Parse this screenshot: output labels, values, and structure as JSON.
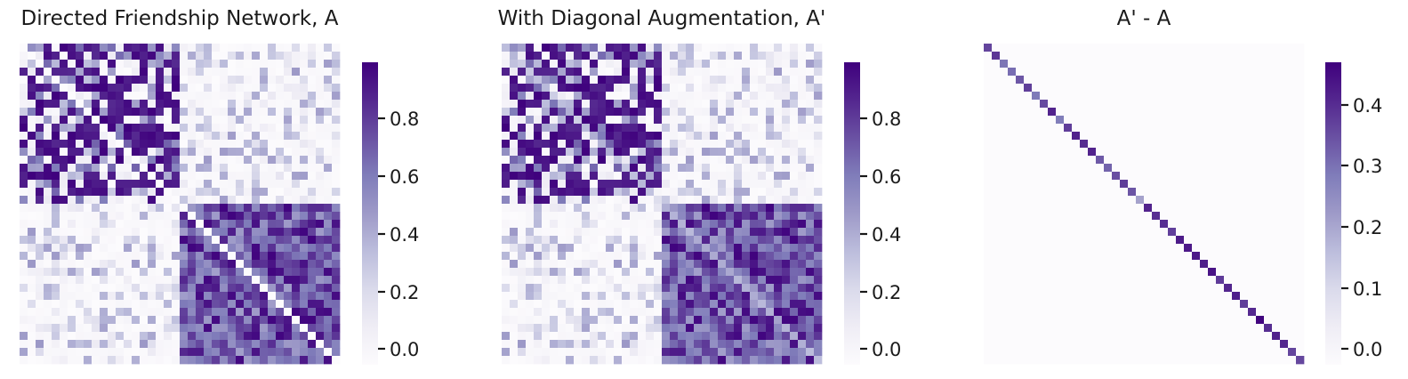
{
  "colormap": {
    "name": "Purples",
    "stops": [
      "#fcfbfd",
      "#efedf5",
      "#dadaeb",
      "#bcbddc",
      "#9e9ac8",
      "#807dba",
      "#6a51a3",
      "#54278f",
      "#3f007d"
    ]
  },
  "chart_data": [
    {
      "type": "heatmap",
      "title": "Directed Friendship Network, A",
      "n_nodes": 40,
      "blocks": 2,
      "block_size": 20,
      "diagonal": "zero",
      "block_mean_values": [
        [
          0.5,
          0.1
        ],
        [
          0.1,
          0.7
        ]
      ],
      "colorbar": {
        "vmin": 0.0,
        "vmax": 0.98,
        "ticks": [
          "0.0",
          "0.2",
          "0.4",
          "0.6",
          "0.8"
        ]
      }
    },
    {
      "type": "heatmap",
      "title": "With Diagonal Augmentation, A'",
      "n_nodes": 40,
      "blocks": 2,
      "block_size": 20,
      "diagonal": "augmented (mean of row)",
      "block_mean_values": [
        [
          0.5,
          0.1
        ],
        [
          0.1,
          0.7
        ]
      ],
      "colorbar": {
        "vmin": 0.0,
        "vmax": 0.98,
        "ticks": [
          "0.0",
          "0.2",
          "0.4",
          "0.6",
          "0.8"
        ]
      }
    },
    {
      "type": "heatmap",
      "title": "A' - A",
      "n_nodes": 40,
      "off_diagonal_value": 0.0,
      "diagonal_range": [
        0.19,
        0.47
      ],
      "colorbar": {
        "vmin": 0.0,
        "vmax": 0.47,
        "ticks": [
          "0.0",
          "0.1",
          "0.2",
          "0.3",
          "0.4"
        ]
      }
    }
  ]
}
